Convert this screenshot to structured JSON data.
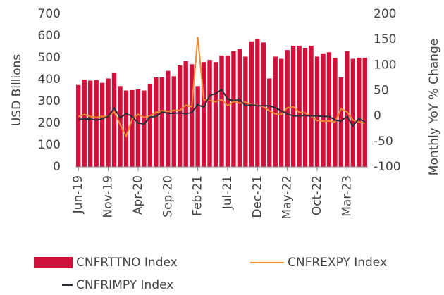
{
  "chart_data": {
    "type": "bar",
    "categories": [
      "Jun-19",
      null,
      null,
      null,
      null,
      "Nov-19",
      null,
      null,
      null,
      null,
      "Apr-20",
      null,
      null,
      null,
      null,
      "Sep-20",
      null,
      null,
      null,
      null,
      "Feb-21",
      null,
      null,
      null,
      null,
      "Jul-21",
      null,
      null,
      null,
      null,
      "Dec-21",
      null,
      null,
      null,
      null,
      "May-22",
      null,
      null,
      null,
      null,
      "Oct-22",
      null,
      null,
      null,
      null,
      "Mar-23",
      null,
      null,
      null
    ],
    "y_label": "USD Billions",
    "y2_label": "Monthly YoY % Change",
    "ylim": [
      0,
      700
    ],
    "yticks": [
      0,
      100,
      200,
      300,
      400,
      500,
      600,
      700
    ],
    "y2lim": [
      -100,
      200
    ],
    "y2ticks": [
      -100,
      -50,
      0,
      50,
      100,
      150,
      200
    ],
    "legend": "bottom",
    "series": [
      {
        "name": "CNFRTTNO Index",
        "type": "bar",
        "color": "#d2103c",
        "values": [
          375,
          400,
          395,
          398,
          385,
          405,
          430,
          370,
          350,
          352,
          355,
          350,
          380,
          410,
          410,
          440,
          415,
          465,
          485,
          470,
          370,
          480,
          490,
          480,
          510,
          510,
          530,
          540,
          505,
          575,
          585,
          570,
          405,
          505,
          495,
          535,
          555,
          555,
          545,
          555,
          505,
          520,
          525,
          500,
          410,
          530,
          495,
          500,
          500
        ]
      },
      {
        "name": "CNFREXPY Index",
        "type": "line",
        "axis": "y2",
        "color": "#f08a33",
        "values": [
          -1,
          3,
          -1,
          -3,
          -1,
          -1,
          8,
          -17,
          -40,
          -7,
          3,
          -3,
          0,
          7,
          10,
          9,
          11,
          11,
          21,
          18,
          155,
          32,
          30,
          28,
          32,
          20,
          28,
          25,
          27,
          22,
          21,
          18,
          10,
          4,
          3,
          16,
          18,
          7,
          6,
          -1,
          -9,
          -10,
          -10,
          -12,
          14,
          8,
          -8,
          -12,
          -14
        ]
      },
      {
        "name": "CNFRIMPY Index",
        "type": "line",
        "axis": "y2",
        "color": "#2b2f3a",
        "values": [
          -7,
          -6,
          -6,
          -8,
          -6,
          -1,
          16,
          -4,
          5,
          -1,
          -14,
          -16,
          -2,
          -1,
          8,
          5,
          5,
          6,
          4,
          7,
          22,
          17,
          40,
          44,
          52,
          33,
          30,
          32,
          20,
          22,
          20,
          20,
          20,
          16,
          10,
          4,
          0,
          0,
          1,
          0,
          0,
          -1,
          -1,
          -8,
          -10,
          -1,
          -20,
          -5,
          -12
        ]
      }
    ]
  }
}
